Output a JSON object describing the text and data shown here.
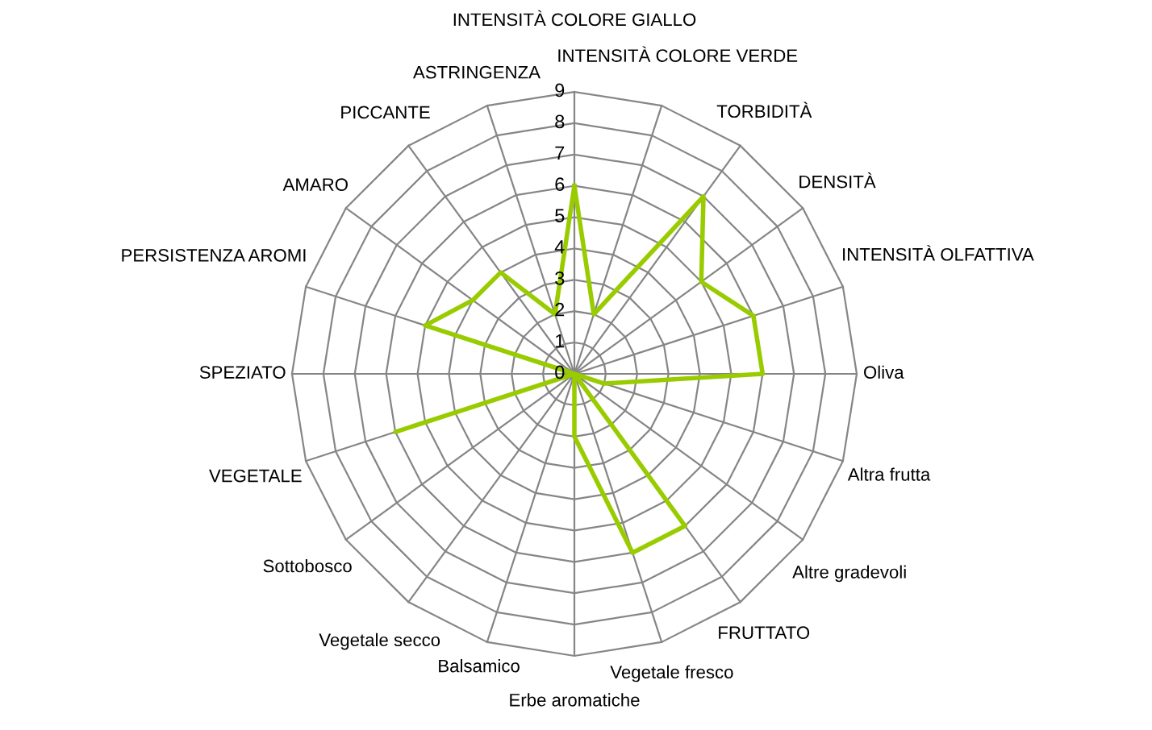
{
  "chart_data": {
    "type": "radar",
    "categories": [
      "INTENSITÀ COLORE GIALLO",
      "INTENSITÀ COLORE VERDE",
      "TORBIDITÀ",
      "DENSITÀ",
      "INTENSITÀ OLFATTIVA",
      "Oliva",
      "Altra frutta",
      "Altre gradevoli",
      "FRUTTATO",
      "Vegetale fresco",
      "Erbe aromatiche",
      "Balsamico",
      "Vegetale secco",
      "Sottobosco",
      "VEGETALE",
      "SPEZIATO",
      "PERSISTENZA AROMI",
      "AMARO",
      "PICCANTE",
      "ASTRINGENZA"
    ],
    "series": [
      {
        "color": "#99cc00",
        "values": [
          6,
          2,
          7,
          5,
          6,
          6,
          1,
          0,
          6,
          6,
          2,
          0,
          0,
          0,
          6,
          0,
          5,
          4,
          4,
          2
        ]
      }
    ],
    "ylim": [
      0,
      9
    ],
    "yticks": [
      0,
      1,
      2,
      3,
      4,
      5,
      6,
      7,
      8,
      9
    ],
    "grid": true
  }
}
